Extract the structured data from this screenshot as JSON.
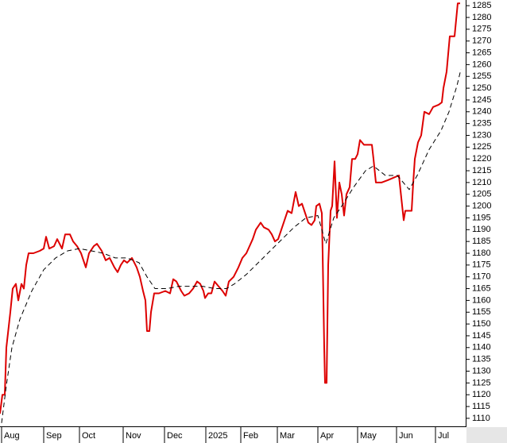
{
  "chart_data": {
    "type": "line",
    "xlim": [
      0,
      293
    ],
    "xticks": [
      {
        "value": 1,
        "label": "Aug"
      },
      {
        "value": 27.5,
        "label": "Sep"
      },
      {
        "value": 50,
        "label": "Oct"
      },
      {
        "value": 77.5,
        "label": "Nov"
      },
      {
        "value": 103.5,
        "label": "Dec"
      },
      {
        "value": 129.5,
        "label": "2025"
      },
      {
        "value": 151.5,
        "label": "Feb"
      },
      {
        "value": 174.5,
        "label": "Mar"
      },
      {
        "value": 200,
        "label": "Apr"
      },
      {
        "value": 225,
        "label": "May"
      },
      {
        "value": 249.5,
        "label": "Jun"
      },
      {
        "value": 274,
        "label": "Jul"
      }
    ],
    "ylim": [
      1106.6,
      1287.4
    ],
    "yticks": [
      1110,
      1115,
      1120,
      1125,
      1130,
      1135,
      1140,
      1145,
      1150,
      1155,
      1160,
      1165,
      1170,
      1175,
      1180,
      1185,
      1190,
      1195,
      1200,
      1205,
      1210,
      1215,
      1220,
      1225,
      1230,
      1235,
      1240,
      1245,
      1250,
      1255,
      1260,
      1265,
      1270,
      1275,
      1280,
      1285
    ],
    "grid": false,
    "series": [
      {
        "color": "#dd0000",
        "style": "solid",
        "x": [
          0,
          1.5,
          3,
          4,
          5,
          6.5,
          8,
          10,
          11.5,
          13.5,
          15,
          16.5,
          18,
          21,
          25,
          27.5,
          29,
          31,
          34,
          36,
          39,
          41,
          44,
          46,
          48.5,
          51,
          54,
          56,
          59,
          61,
          64,
          66.5,
          69,
          72,
          74,
          76,
          78,
          80,
          83,
          86,
          88,
          90,
          91.5,
          92.5,
          94,
          95,
          97,
          100,
          104,
          107,
          109,
          111,
          114,
          116,
          119,
          121.5,
          124,
          126,
          128,
          129,
          131,
          133,
          135,
          137.5,
          140,
          142,
          144,
          147,
          150,
          152.5,
          155,
          157,
          159,
          161,
          164,
          166,
          169,
          171,
          173,
          175,
          177,
          179,
          181,
          183.5,
          186,
          188,
          190,
          192,
          194,
          196,
          198,
          199,
          201,
          202.5,
          203,
          204,
          204.5,
          205.5,
          206.5,
          208,
          209,
          210.5,
          212,
          213.5,
          215,
          216.5,
          218,
          220,
          221.5,
          223.5,
          225,
          226.5,
          229,
          234,
          235,
          236.5,
          240,
          244,
          247.5,
          251,
          254,
          255,
          259,
          260,
          261,
          263,
          265,
          267,
          270,
          272.5,
          276,
          278,
          279,
          281,
          283,
          286,
          288,
          289.5
        ],
        "values": [
          1112,
          1120,
          1120,
          1140,
          1146,
          1155,
          1165,
          1167,
          1160,
          1167,
          1165,
          1175,
          1180,
          1180,
          1181,
          1182,
          1187,
          1182,
          1183,
          1186,
          1182,
          1188,
          1188,
          1185,
          1183,
          1180,
          1174,
          1180,
          1183,
          1184,
          1181,
          1177,
          1178,
          1174,
          1172,
          1175,
          1177,
          1176,
          1178,
          1174,
          1170,
          1164,
          1160,
          1147,
          1147,
          1155,
          1163,
          1163,
          1164,
          1163,
          1169,
          1168,
          1164,
          1162,
          1163,
          1165,
          1168,
          1167,
          1164,
          1161,
          1163,
          1163,
          1168,
          1166,
          1164,
          1162,
          1168,
          1170,
          1174,
          1178,
          1180,
          1183,
          1186,
          1190,
          1193,
          1191,
          1190,
          1188,
          1185,
          1186,
          1190,
          1194,
          1198,
          1197,
          1206,
          1200,
          1201,
          1197,
          1193,
          1192,
          1194,
          1200,
          1201,
          1197,
          1180,
          1140,
          1125,
          1125,
          1175,
          1198,
          1200,
          1219,
          1195,
          1210,
          1205,
          1196,
          1205,
          1208,
          1220,
          1220,
          1222,
          1228,
          1226,
          1226,
          1220,
          1210,
          1210,
          1211,
          1212,
          1213,
          1194,
          1198,
          1198,
          1210,
          1220,
          1227,
          1230,
          1240,
          1239,
          1242,
          1243,
          1244,
          1250,
          1257,
          1272,
          1272,
          1286,
          1286
        ]
      },
      {
        "color": "#000000",
        "style": "dashed",
        "x": [
          1,
          4,
          7.5,
          12.5,
          20,
          27.5,
          35,
          42.5,
          50,
          57.5,
          65,
          72.5,
          80,
          87.5,
          92.5,
          97.5,
          105,
          112.5,
          120,
          127.5,
          135,
          142.5,
          147.5,
          155,
          162.5,
          170,
          177.5,
          185,
          192.5,
          200,
          205,
          210,
          215,
          222.5,
          230,
          235,
          242.5,
          250,
          255,
          257.5,
          262.5,
          270,
          277.5,
          282.5,
          287.5,
          290
        ],
        "values": [
          1108,
          1124,
          1140,
          1152,
          1164,
          1173,
          1178,
          1181,
          1182,
          1181,
          1180,
          1178,
          1178,
          1176,
          1170,
          1165,
          1165,
          1166,
          1166,
          1166,
          1165,
          1165,
          1167,
          1171,
          1176,
          1181,
          1186,
          1191,
          1195,
          1196,
          1184,
          1195,
          1200,
          1208,
          1215,
          1217,
          1213,
          1213,
          1209,
          1207,
          1213,
          1224,
          1232,
          1240,
          1251,
          1258
        ]
      }
    ]
  }
}
